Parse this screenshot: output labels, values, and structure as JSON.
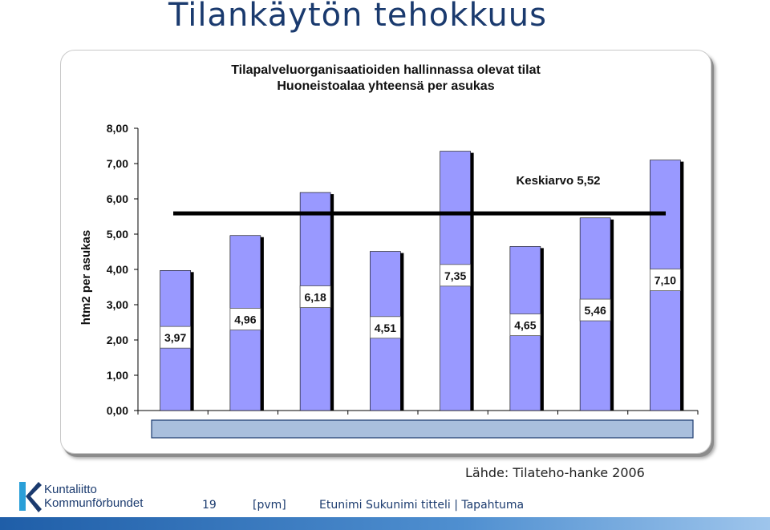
{
  "slide": {
    "title": "Tilankäytön tehokkuus",
    "source": "Lähde: Tilateho-hanke 2006",
    "logo": {
      "line1": "Kuntaliitto",
      "line2": "Kommunförbundet",
      "icon": "kuntaliitto-k-logo-icon"
    },
    "footer": {
      "page_number": "19",
      "date": "[pvm]",
      "presenter": "Etunimi Sukunimi titteli | Tapahtuma"
    },
    "colors": {
      "title": "#1a3a6e",
      "bar": "#9999ff",
      "average_line": "#000000",
      "plot_bg": "#ffffff",
      "grid": "#000000"
    }
  },
  "chart_data": {
    "type": "bar",
    "title": "Tilapalveluorganisaatioiden hallinnassa olevat tilat",
    "subtitle": "Huoneistoalaa yhteensä per asukas",
    "ylabel": "htm2 per asukas",
    "ylim": [
      0,
      8
    ],
    "yticks": [
      "0,00",
      "1,00",
      "2,00",
      "3,00",
      "4,00",
      "5,00",
      "6,00",
      "7,00",
      "8,00"
    ],
    "grid": false,
    "values": [
      3.97,
      4.96,
      6.18,
      4.51,
      7.35,
      4.65,
      5.46,
      7.1
    ],
    "value_labels": [
      "3,97",
      "4,96",
      "6,18",
      "4,51",
      "7,35",
      "4,65",
      "5,46",
      "7,10"
    ],
    "average": {
      "value": 5.52,
      "label": "Keskiarvo 5,52"
    }
  }
}
